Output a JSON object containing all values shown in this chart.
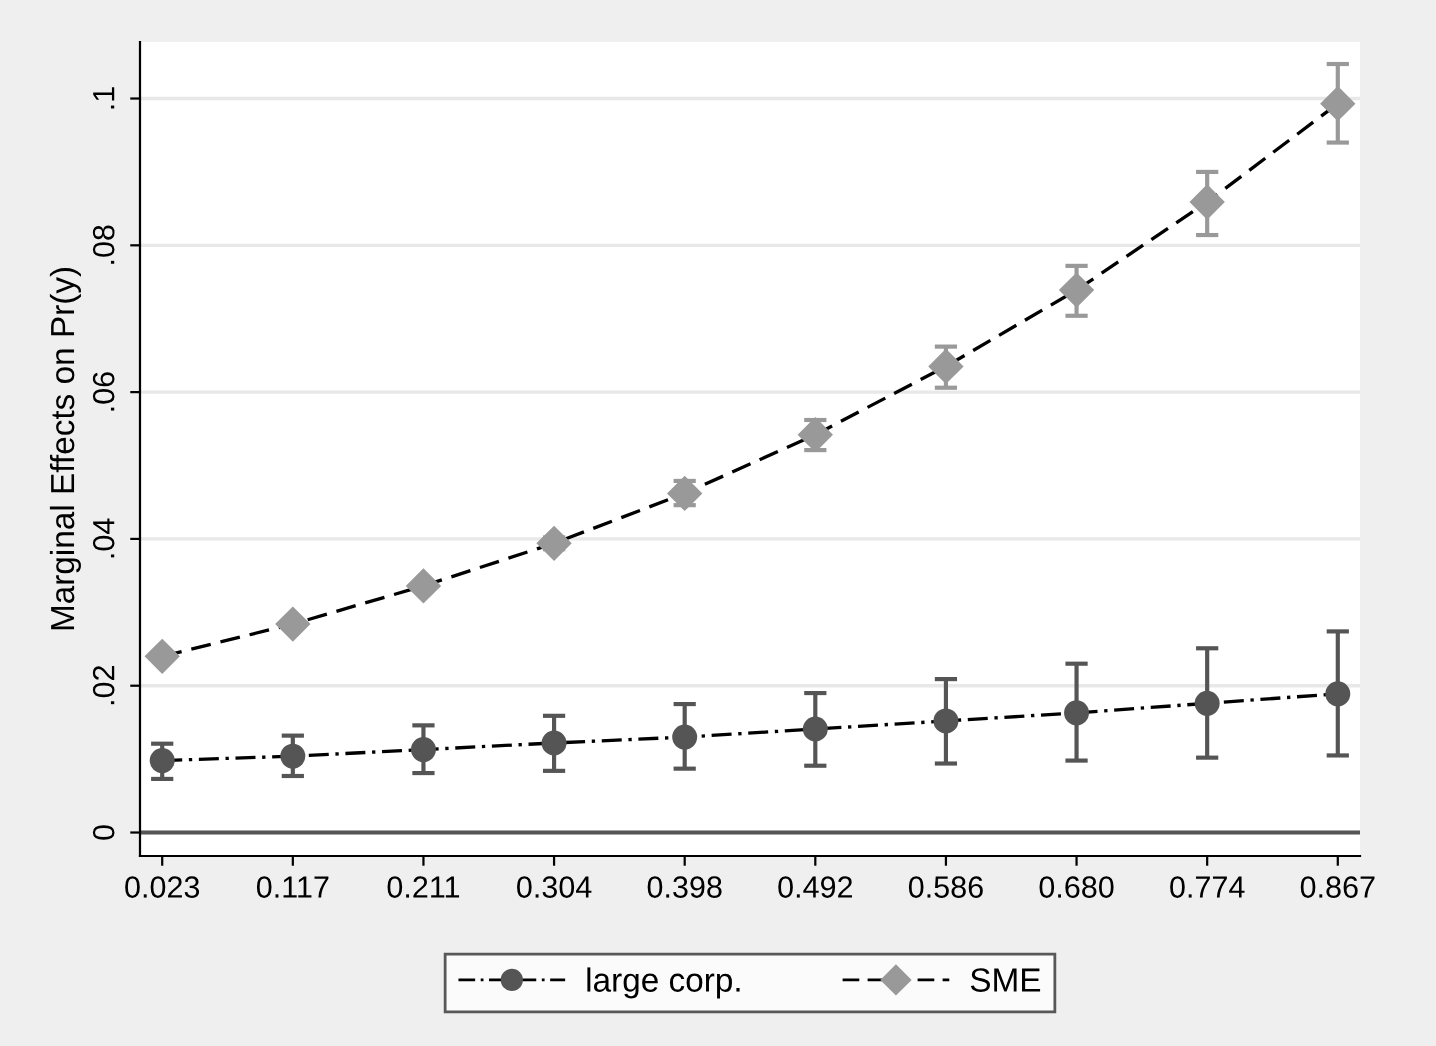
{
  "chart_data": {
    "type": "line",
    "ylabel": "Marginal Effects on Pr(y)",
    "categories": [
      "0.023",
      "0.117",
      "0.211",
      "0.304",
      "0.398",
      "0.492",
      "0.586",
      "0.680",
      "0.774",
      "0.867"
    ],
    "series": [
      {
        "name": "large corp.",
        "color": "#555555",
        "marker": "circle",
        "line_style": "dashdot",
        "values": [
          0.0098,
          0.0104,
          0.0113,
          0.0122,
          0.013,
          0.0141,
          0.0152,
          0.0163,
          0.0176,
          0.0189
        ],
        "errors": [
          [
            0.0073,
            0.0121
          ],
          [
            0.0077,
            0.0132
          ],
          [
            0.0081,
            0.0146
          ],
          [
            0.0084,
            0.0159
          ],
          [
            0.0087,
            0.0175
          ],
          [
            0.0091,
            0.019
          ],
          [
            0.0094,
            0.0209
          ],
          [
            0.0098,
            0.023
          ],
          [
            0.0102,
            0.0251
          ],
          [
            0.0105,
            0.0274
          ]
        ]
      },
      {
        "name": "SME",
        "color": "#999999",
        "marker": "diamond",
        "line_style": "dashed",
        "values": [
          0.024,
          0.0284,
          0.0336,
          0.0394,
          0.0462,
          0.0542,
          0.0635,
          0.0739,
          0.0859,
          0.0993
        ],
        "errors": [
          null,
          null,
          null,
          [
            0.0386,
            0.0402
          ],
          [
            0.0446,
            0.0479
          ],
          [
            0.0521,
            0.0562
          ],
          [
            0.0606,
            0.0662
          ],
          [
            0.0704,
            0.0772
          ],
          [
            0.0814,
            0.09
          ],
          [
            0.094,
            0.1047
          ]
        ]
      }
    ],
    "ylim": [
      -0.0032,
      0.1077
    ],
    "yticks": [
      0,
      {
        "value": 0.02,
        "label": ".02"
      },
      {
        "value": 0.04,
        "label": ".04"
      },
      {
        "value": 0.06,
        "label": ".06"
      },
      {
        "value": 0.08,
        "label": ".08"
      },
      {
        "value": 0.1,
        "label": ".1"
      }
    ],
    "ref_lines": [
      {
        "axis": "y",
        "value": 0,
        "color": "#555555"
      }
    ],
    "grid": "y",
    "legend": "bottom"
  }
}
